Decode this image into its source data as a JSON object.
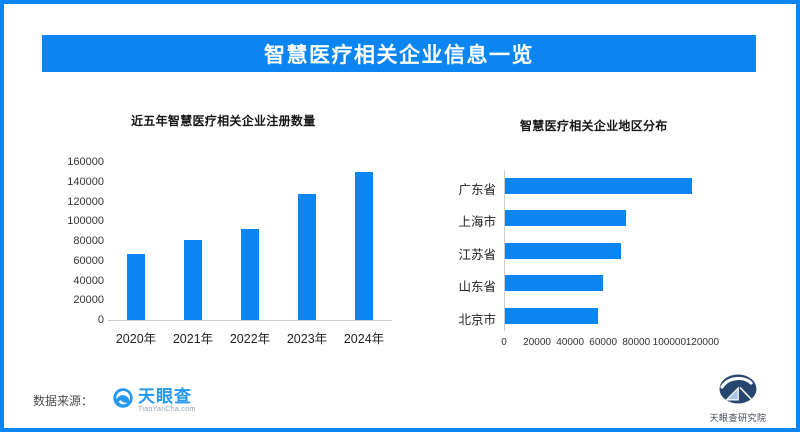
{
  "theme": {
    "accent_blue": "#0b85f2",
    "axis_gray": "#cccccc",
    "tick_text": "#333333",
    "category_text": "#222222",
    "navy": "#27466f",
    "light_blue": "#a9c3e4",
    "tyc_blue": "#2598f2"
  },
  "header": {
    "title": "智慧医疗相关企业信息一览"
  },
  "chart_data": [
    {
      "type": "bar",
      "orientation": "vertical",
      "title": "近五年智慧医疗相关企业注册数量",
      "categories": [
        "2020年",
        "2021年",
        "2022年",
        "2023年",
        "2024年"
      ],
      "values": [
        67000,
        81000,
        92000,
        128000,
        150000
      ],
      "ylabel": "",
      "xlabel": "",
      "ylim": [
        0,
        160000
      ],
      "yticks": [
        0,
        20000,
        40000,
        60000,
        80000,
        100000,
        120000,
        140000,
        160000
      ],
      "grid": false,
      "legend": "none",
      "bar_color": "#0b85f2"
    },
    {
      "type": "bar",
      "orientation": "horizontal",
      "title": "智慧医疗相关企业地区分布",
      "categories": [
        "广东省",
        "上海市",
        "江苏省",
        "山东省",
        "北京市"
      ],
      "values": [
        113000,
        73000,
        70000,
        59000,
        56000
      ],
      "ylabel": "",
      "xlabel": "",
      "xlim": [
        0,
        120000
      ],
      "xticks": [
        0,
        20000,
        40000,
        60000,
        80000,
        100000,
        120000
      ],
      "grid": false,
      "legend": "none",
      "bar_color": "#0b85f2"
    }
  ],
  "footer": {
    "source_label": "数据来源：",
    "tianyancha": {
      "name": "天眼查",
      "domain": "TianYanCha.com"
    },
    "research_institute": "天眼查研究院"
  }
}
